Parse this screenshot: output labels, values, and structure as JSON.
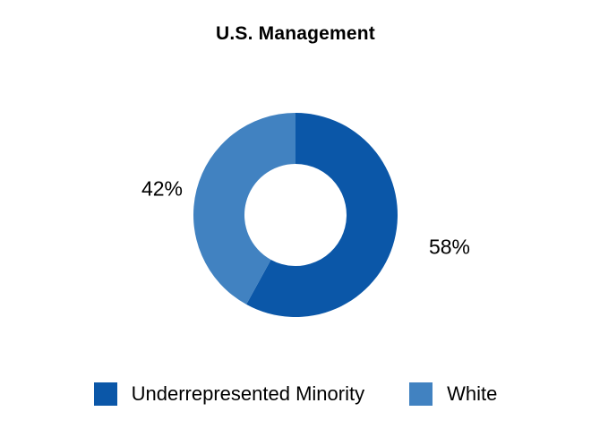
{
  "chart_data": {
    "type": "pie",
    "subtype": "donut",
    "title": "U.S. Management",
    "categories": [
      "Underrepresented Minority",
      "White"
    ],
    "values": [
      58,
      42
    ],
    "labels": [
      "58%",
      "42%"
    ],
    "colors": [
      "#0B57A8",
      "#4182C1"
    ],
    "start_angle_deg": 0,
    "direction": "clockwise",
    "hole_ratio": 0.5,
    "background_color": "#FFFFFF",
    "label_color": "#000000",
    "legend": {
      "position": "bottom",
      "items": [
        {
          "label": "Underrepresented Minority",
          "color": "#0B57A8"
        },
        {
          "label": "White",
          "color": "#4182C1"
        }
      ]
    }
  }
}
